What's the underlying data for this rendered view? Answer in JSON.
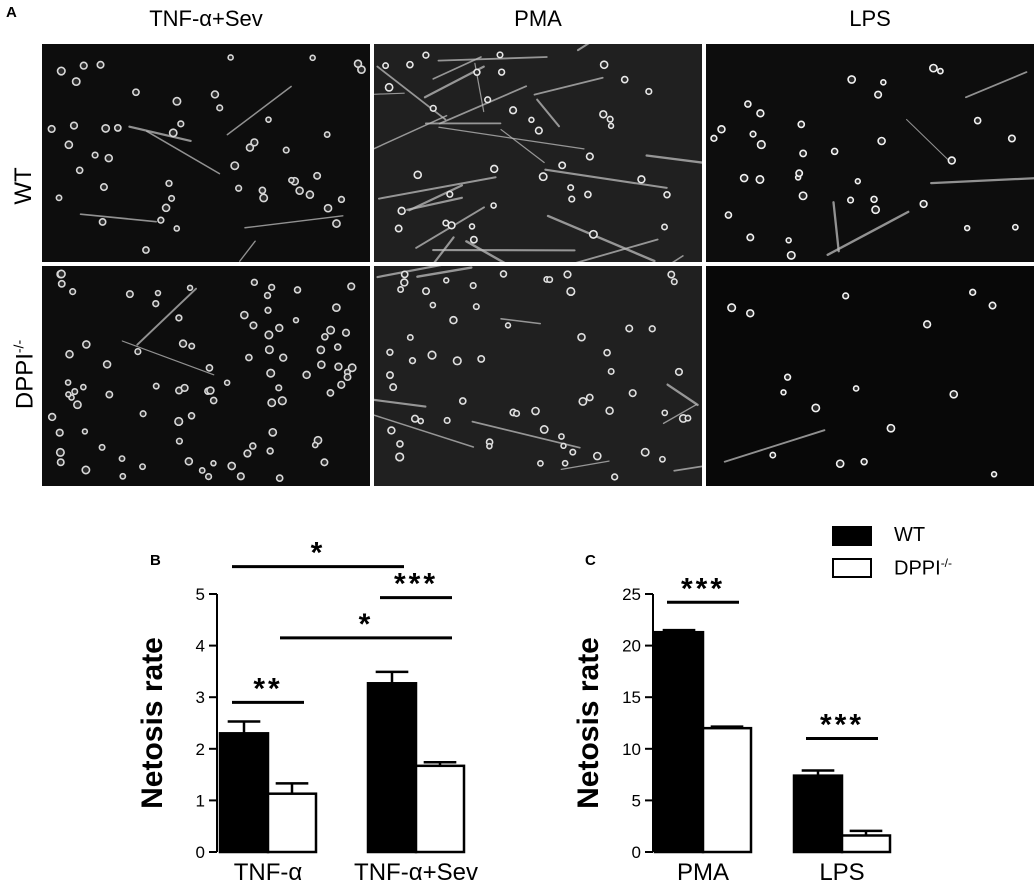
{
  "panel_a": {
    "letter": "A",
    "columns": [
      "TNF-α+Sev",
      "PMA",
      "LPS"
    ],
    "rows": [
      {
        "label": "WT",
        "sup": ""
      },
      {
        "label": "DPPI",
        "sup": "-/-"
      }
    ]
  },
  "legend": {
    "entries": [
      {
        "name": "WT",
        "sup": "",
        "fill": "#000000"
      },
      {
        "name": "DPPI",
        "sup": "-/-",
        "fill": "#ffffff"
      }
    ]
  },
  "colors": {
    "wt": "#000000",
    "dppi": "#ffffff",
    "axis": "#000000"
  },
  "chart_data": [
    {
      "panel": "B",
      "type": "bar",
      "ylabel": "Netosis rate",
      "ylim": [
        0,
        5
      ],
      "yticks": [
        0,
        1,
        2,
        3,
        4,
        5
      ],
      "categories": [
        "TNF-α",
        "TNF-α+Sev"
      ],
      "series": [
        {
          "name": "WT",
          "values": [
            2.3,
            3.27
          ],
          "errors": [
            0.23,
            0.22
          ]
        },
        {
          "name": "DPPI-/-",
          "values": [
            1.13,
            1.67
          ],
          "errors": [
            0.2,
            0.07
          ]
        }
      ],
      "annotations": [
        {
          "text": "**",
          "from": [
            0,
            0
          ],
          "to": [
            0,
            1
          ],
          "y": 2.9
        },
        {
          "text": "***",
          "from": [
            1,
            0
          ],
          "to": [
            1,
            1
          ],
          "y": 4.93
        },
        {
          "text": "*",
          "from": [
            0,
            0
          ],
          "to": [
            1,
            0
          ],
          "y": 5.53
        },
        {
          "text": "*",
          "from": [
            0,
            1
          ],
          "to": [
            1,
            1
          ],
          "y": 4.15
        }
      ]
    },
    {
      "panel": "C",
      "type": "bar",
      "ylabel": "Netosis rate",
      "ylim": [
        0,
        25
      ],
      "yticks": [
        0,
        5,
        10,
        15,
        20,
        25
      ],
      "categories": [
        "PMA",
        "LPS"
      ],
      "series": [
        {
          "name": "WT",
          "values": [
            21.3,
            7.4
          ],
          "errors": [
            0.2,
            0.5
          ]
        },
        {
          "name": "DPPI-/-",
          "values": [
            12.0,
            1.6
          ],
          "errors": [
            0.15,
            0.45
          ]
        }
      ],
      "annotations": [
        {
          "text": "***",
          "from": [
            0,
            0
          ],
          "to": [
            0,
            1
          ],
          "y": 24.2
        },
        {
          "text": "***",
          "from": [
            1,
            0
          ],
          "to": [
            1,
            1
          ],
          "y": 11.0
        }
      ]
    }
  ]
}
